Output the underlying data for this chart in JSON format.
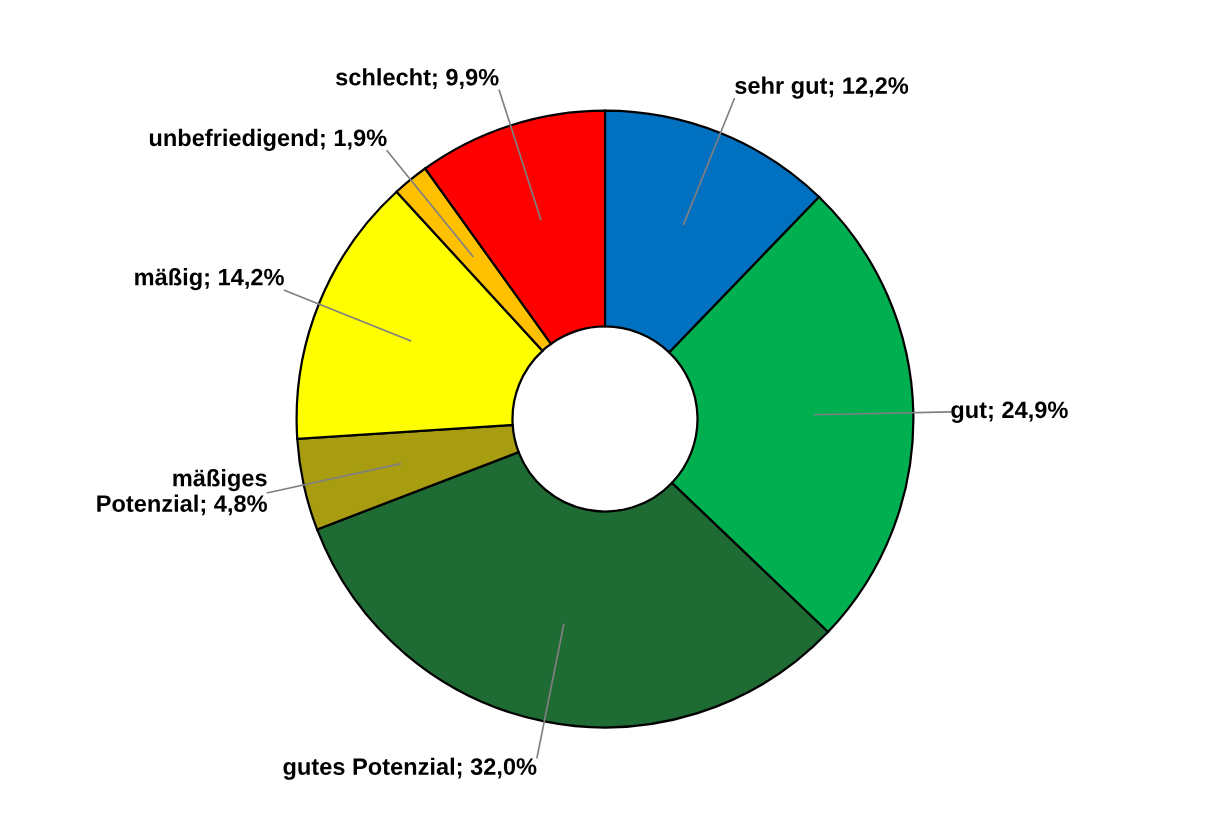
{
  "chart_data": {
    "type": "donut",
    "categories": [
      "sehr gut",
      "gut",
      "gutes Potenzial",
      "mäßiges\nPotenzial",
      "mäßig",
      "unbefriedigend",
      "schlecht"
    ],
    "values": [
      12.2,
      24.9,
      32.0,
      4.8,
      14.2,
      1.9,
      9.9
    ],
    "value_labels": [
      "12,2%",
      "24,9%",
      "32,0%",
      "4,8%",
      "14,2%",
      "1,9%",
      "9,9%"
    ],
    "colors": [
      "#0070c0",
      "#00b050",
      "#1e6b34",
      "#a89c10",
      "#ffff00",
      "#ffc000",
      "#ff0000"
    ]
  }
}
